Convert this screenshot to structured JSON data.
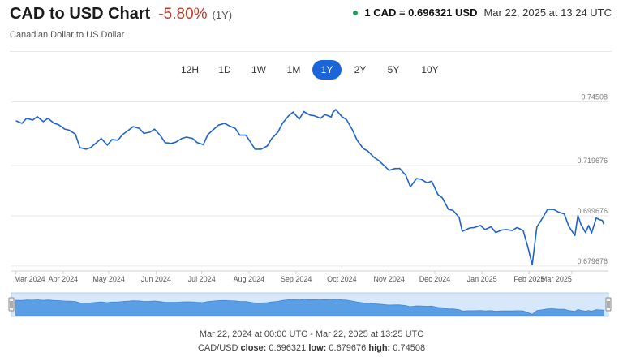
{
  "header": {
    "title": "CAD to USD Chart",
    "change": "-5.80%",
    "period": "(1Y)",
    "subtitle": "Canadian Dollar to US Dollar",
    "rate": "1 CAD = 0.696321 USD",
    "timestamp": "Mar 22, 2025 at 13:24 UTC"
  },
  "tabs": [
    {
      "label": "12H",
      "active": false
    },
    {
      "label": "1D",
      "active": false
    },
    {
      "label": "1W",
      "active": false
    },
    {
      "label": "1M",
      "active": false
    },
    {
      "label": "1Y",
      "active": true
    },
    {
      "label": "2Y",
      "active": false
    },
    {
      "label": "5Y",
      "active": false
    },
    {
      "label": "10Y",
      "active": false
    }
  ],
  "colors": {
    "accent": "#1a66d9",
    "line": "#1f63c6",
    "negative": "#c0392b",
    "live": "#1f9d55",
    "navigator": "#5a9fe6"
  },
  "footer": {
    "range": "Mar 22, 2024 at 00:00 UTC - Mar 22, 2025 at 13:25 UTC",
    "pair": "CAD/USD",
    "close_label": "close:",
    "close": "0.696321",
    "low_label": "low:",
    "low": "0.679676",
    "high_label": "high:",
    "high": "0.74508"
  },
  "chart_data": {
    "type": "line",
    "yticks": [
      "0.74508",
      "0.719676",
      "0.699676",
      "0.679676"
    ],
    "ytick_values": [
      0.74508,
      0.719676,
      0.699676,
      0.679676
    ],
    "ylim": [
      0.678,
      0.7475
    ],
    "xticks": [
      "Mar 2024",
      "Apr 2024",
      "May 2024",
      "Jun 2024",
      "Jul 2024",
      "Aug 2024",
      "Sep 2024",
      "Oct 2024",
      "Nov 2024",
      "Dec 2024",
      "Jan 2025",
      "Feb 2025",
      "Mar 2025"
    ],
    "xtick_values": [
      "2024-03-01",
      "2024-04-01",
      "2024-05-01",
      "2024-06-01",
      "2024-07-01",
      "2024-08-01",
      "2024-09-01",
      "2024-10-01",
      "2024-11-01",
      "2024-12-01",
      "2025-01-01",
      "2025-02-01",
      "2025-03-01"
    ],
    "xlim": [
      "2024-02-27",
      "2025-03-25"
    ],
    "grid": "horizontal",
    "series": [
      {
        "x": [
          "2024-03-01",
          "2024-03-05",
          "2024-03-08",
          "2024-03-12",
          "2024-03-15",
          "2024-03-19",
          "2024-03-22",
          "2024-03-26",
          "2024-03-29",
          "2024-04-02",
          "2024-04-05",
          "2024-04-09",
          "2024-04-12",
          "2024-04-16",
          "2024-04-19",
          "2024-04-23",
          "2024-04-26",
          "2024-04-30",
          "2024-05-03",
          "2024-05-07",
          "2024-05-10",
          "2024-05-14",
          "2024-05-17",
          "2024-05-21",
          "2024-05-24",
          "2024-05-28",
          "2024-05-31",
          "2024-06-04",
          "2024-06-07",
          "2024-06-11",
          "2024-06-14",
          "2024-06-18",
          "2024-06-21",
          "2024-06-25",
          "2024-06-28",
          "2024-07-02",
          "2024-07-05",
          "2024-07-09",
          "2024-07-12",
          "2024-07-16",
          "2024-07-19",
          "2024-07-23",
          "2024-07-26",
          "2024-07-30",
          "2024-08-02",
          "2024-08-05",
          "2024-08-09",
          "2024-08-13",
          "2024-08-16",
          "2024-08-20",
          "2024-08-23",
          "2024-08-27",
          "2024-08-30",
          "2024-09-03",
          "2024-09-06",
          "2024-09-10",
          "2024-09-13",
          "2024-09-17",
          "2024-09-20",
          "2024-09-24",
          "2024-09-25",
          "2024-09-27",
          "2024-10-01",
          "2024-10-04",
          "2024-10-08",
          "2024-10-11",
          "2024-10-15",
          "2024-10-18",
          "2024-10-22",
          "2024-10-25",
          "2024-10-29",
          "2024-11-01",
          "2024-11-05",
          "2024-11-08",
          "2024-11-12",
          "2024-11-15",
          "2024-11-19",
          "2024-11-22",
          "2024-11-26",
          "2024-11-29",
          "2024-12-03",
          "2024-12-06",
          "2024-12-10",
          "2024-12-13",
          "2024-12-17",
          "2024-12-19",
          "2024-12-24",
          "2024-12-27",
          "2024-12-31",
          "2025-01-03",
          "2025-01-07",
          "2025-01-10",
          "2025-01-14",
          "2025-01-17",
          "2025-01-21",
          "2025-01-24",
          "2025-01-28",
          "2025-01-31",
          "2025-02-03",
          "2025-02-06",
          "2025-02-10",
          "2025-02-13",
          "2025-02-17",
          "2025-02-20",
          "2025-02-24",
          "2025-02-27",
          "2025-03-03",
          "2025-03-05",
          "2025-03-07",
          "2025-03-10",
          "2025-03-12",
          "2025-03-14",
          "2025-03-17",
          "2025-03-19",
          "2025-03-21",
          "2025-03-22"
        ],
        "y": [
          0.7375,
          0.7365,
          0.7385,
          0.7378,
          0.7392,
          0.7372,
          0.7385,
          0.7365,
          0.736,
          0.7342,
          0.7338,
          0.7322,
          0.7268,
          0.7262,
          0.7268,
          0.7288,
          0.7305,
          0.7278,
          0.73,
          0.7298,
          0.732,
          0.7338,
          0.7352,
          0.7345,
          0.7325,
          0.733,
          0.7342,
          0.7315,
          0.7288,
          0.7285,
          0.729,
          0.7305,
          0.731,
          0.7305,
          0.7288,
          0.728,
          0.732,
          0.7342,
          0.7358,
          0.7365,
          0.7355,
          0.7345,
          0.7318,
          0.7318,
          0.729,
          0.7262,
          0.7262,
          0.7275,
          0.7305,
          0.733,
          0.7365,
          0.7395,
          0.741,
          0.7382,
          0.7412,
          0.7398,
          0.7395,
          0.7385,
          0.74,
          0.739,
          0.7408,
          0.742,
          0.7392,
          0.738,
          0.7338,
          0.7298,
          0.7265,
          0.7255,
          0.723,
          0.7218,
          0.7195,
          0.7178,
          0.7185,
          0.7185,
          0.7158,
          0.7112,
          0.7145,
          0.7142,
          0.7128,
          0.7135,
          0.7082,
          0.7068,
          0.7022,
          0.7018,
          0.699,
          0.6935,
          0.6948,
          0.695,
          0.6958,
          0.6942,
          0.6953,
          0.693,
          0.694,
          0.6942,
          0.6938,
          0.695,
          0.6938,
          0.6875,
          0.6802,
          0.6952,
          0.699,
          0.7022,
          0.7022,
          0.7012,
          0.7004,
          0.6955,
          0.6918,
          0.6998,
          0.6962,
          0.693,
          0.6958,
          0.6928,
          0.6988,
          0.6982,
          0.6978,
          0.6963
        ]
      }
    ]
  }
}
